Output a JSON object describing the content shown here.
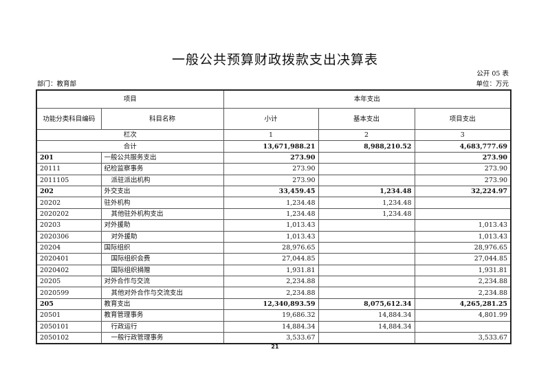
{
  "title": "一般公共预算财政拨款支出决算表",
  "form_no": "公开 05 表",
  "department": "部门：教育部",
  "unit": "单位：万元",
  "header": {
    "item": "项目",
    "current_year": "本年支出",
    "code": "功能分类科目编码",
    "name": "科目名称",
    "subtotal": "小计",
    "basic": "基本支出",
    "project": "项目支出",
    "column_index_label": "栏次",
    "col1": "1",
    "col2": "2",
    "col3": "3"
  },
  "total": {
    "label": "合计",
    "subtotal": "13,671,988.21",
    "basic": "8,988,210.52",
    "project": "4,683,777.69"
  },
  "rows": [
    {
      "code": "201",
      "name": "一般公共服务支出",
      "subtotal": "273.90",
      "basic": "",
      "project": "273.90",
      "level": 1
    },
    {
      "code": "20111",
      "name": "纪检监察事务",
      "subtotal": "273.90",
      "basic": "",
      "project": "273.90",
      "level": 2
    },
    {
      "code": "2011105",
      "name": "派驻派出机构",
      "subtotal": "273.90",
      "basic": "",
      "project": "273.90",
      "level": 3
    },
    {
      "code": "202",
      "name": "外交支出",
      "subtotal": "33,459.45",
      "basic": "1,234.48",
      "project": "32,224.97",
      "level": 1
    },
    {
      "code": "20202",
      "name": "驻外机构",
      "subtotal": "1,234.48",
      "basic": "1,234.48",
      "project": "",
      "level": 2
    },
    {
      "code": "2020202",
      "name": "其他驻外机构支出",
      "subtotal": "1,234.48",
      "basic": "1,234.48",
      "project": "",
      "level": 3
    },
    {
      "code": "20203",
      "name": "对外援助",
      "subtotal": "1,013.43",
      "basic": "",
      "project": "1,013.43",
      "level": 2
    },
    {
      "code": "2020306",
      "name": "对外援助",
      "subtotal": "1,013.43",
      "basic": "",
      "project": "1,013.43",
      "level": 3
    },
    {
      "code": "20204",
      "name": "国际组织",
      "subtotal": "28,976.65",
      "basic": "",
      "project": "28,976.65",
      "level": 2
    },
    {
      "code": "2020401",
      "name": "国际组织会费",
      "subtotal": "27,044.85",
      "basic": "",
      "project": "27,044.85",
      "level": 3
    },
    {
      "code": "2020402",
      "name": "国际组织捐赠",
      "subtotal": "1,931.81",
      "basic": "",
      "project": "1,931.81",
      "level": 3
    },
    {
      "code": "20205",
      "name": "对外合作与交流",
      "subtotal": "2,234.88",
      "basic": "",
      "project": "2,234.88",
      "level": 2
    },
    {
      "code": "2020599",
      "name": "其他对外合作与交流支出",
      "subtotal": "2,234.88",
      "basic": "",
      "project": "2,234.88",
      "level": 3
    },
    {
      "code": "205",
      "name": "教育支出",
      "subtotal": "12,340,893.59",
      "basic": "8,075,612.34",
      "project": "4,265,281.25",
      "level": 1
    },
    {
      "code": "20501",
      "name": "教育管理事务",
      "subtotal": "19,686.32",
      "basic": "14,884.34",
      "project": "4,801.99",
      "level": 2
    },
    {
      "code": "2050101",
      "name": "行政运行",
      "subtotal": "14,884.34",
      "basic": "14,884.34",
      "project": "",
      "level": 3
    },
    {
      "code": "2050102",
      "name": "一般行政管理事务",
      "subtotal": "3,533.67",
      "basic": "",
      "project": "3,533.67",
      "level": 3
    }
  ],
  "page_number": "21"
}
